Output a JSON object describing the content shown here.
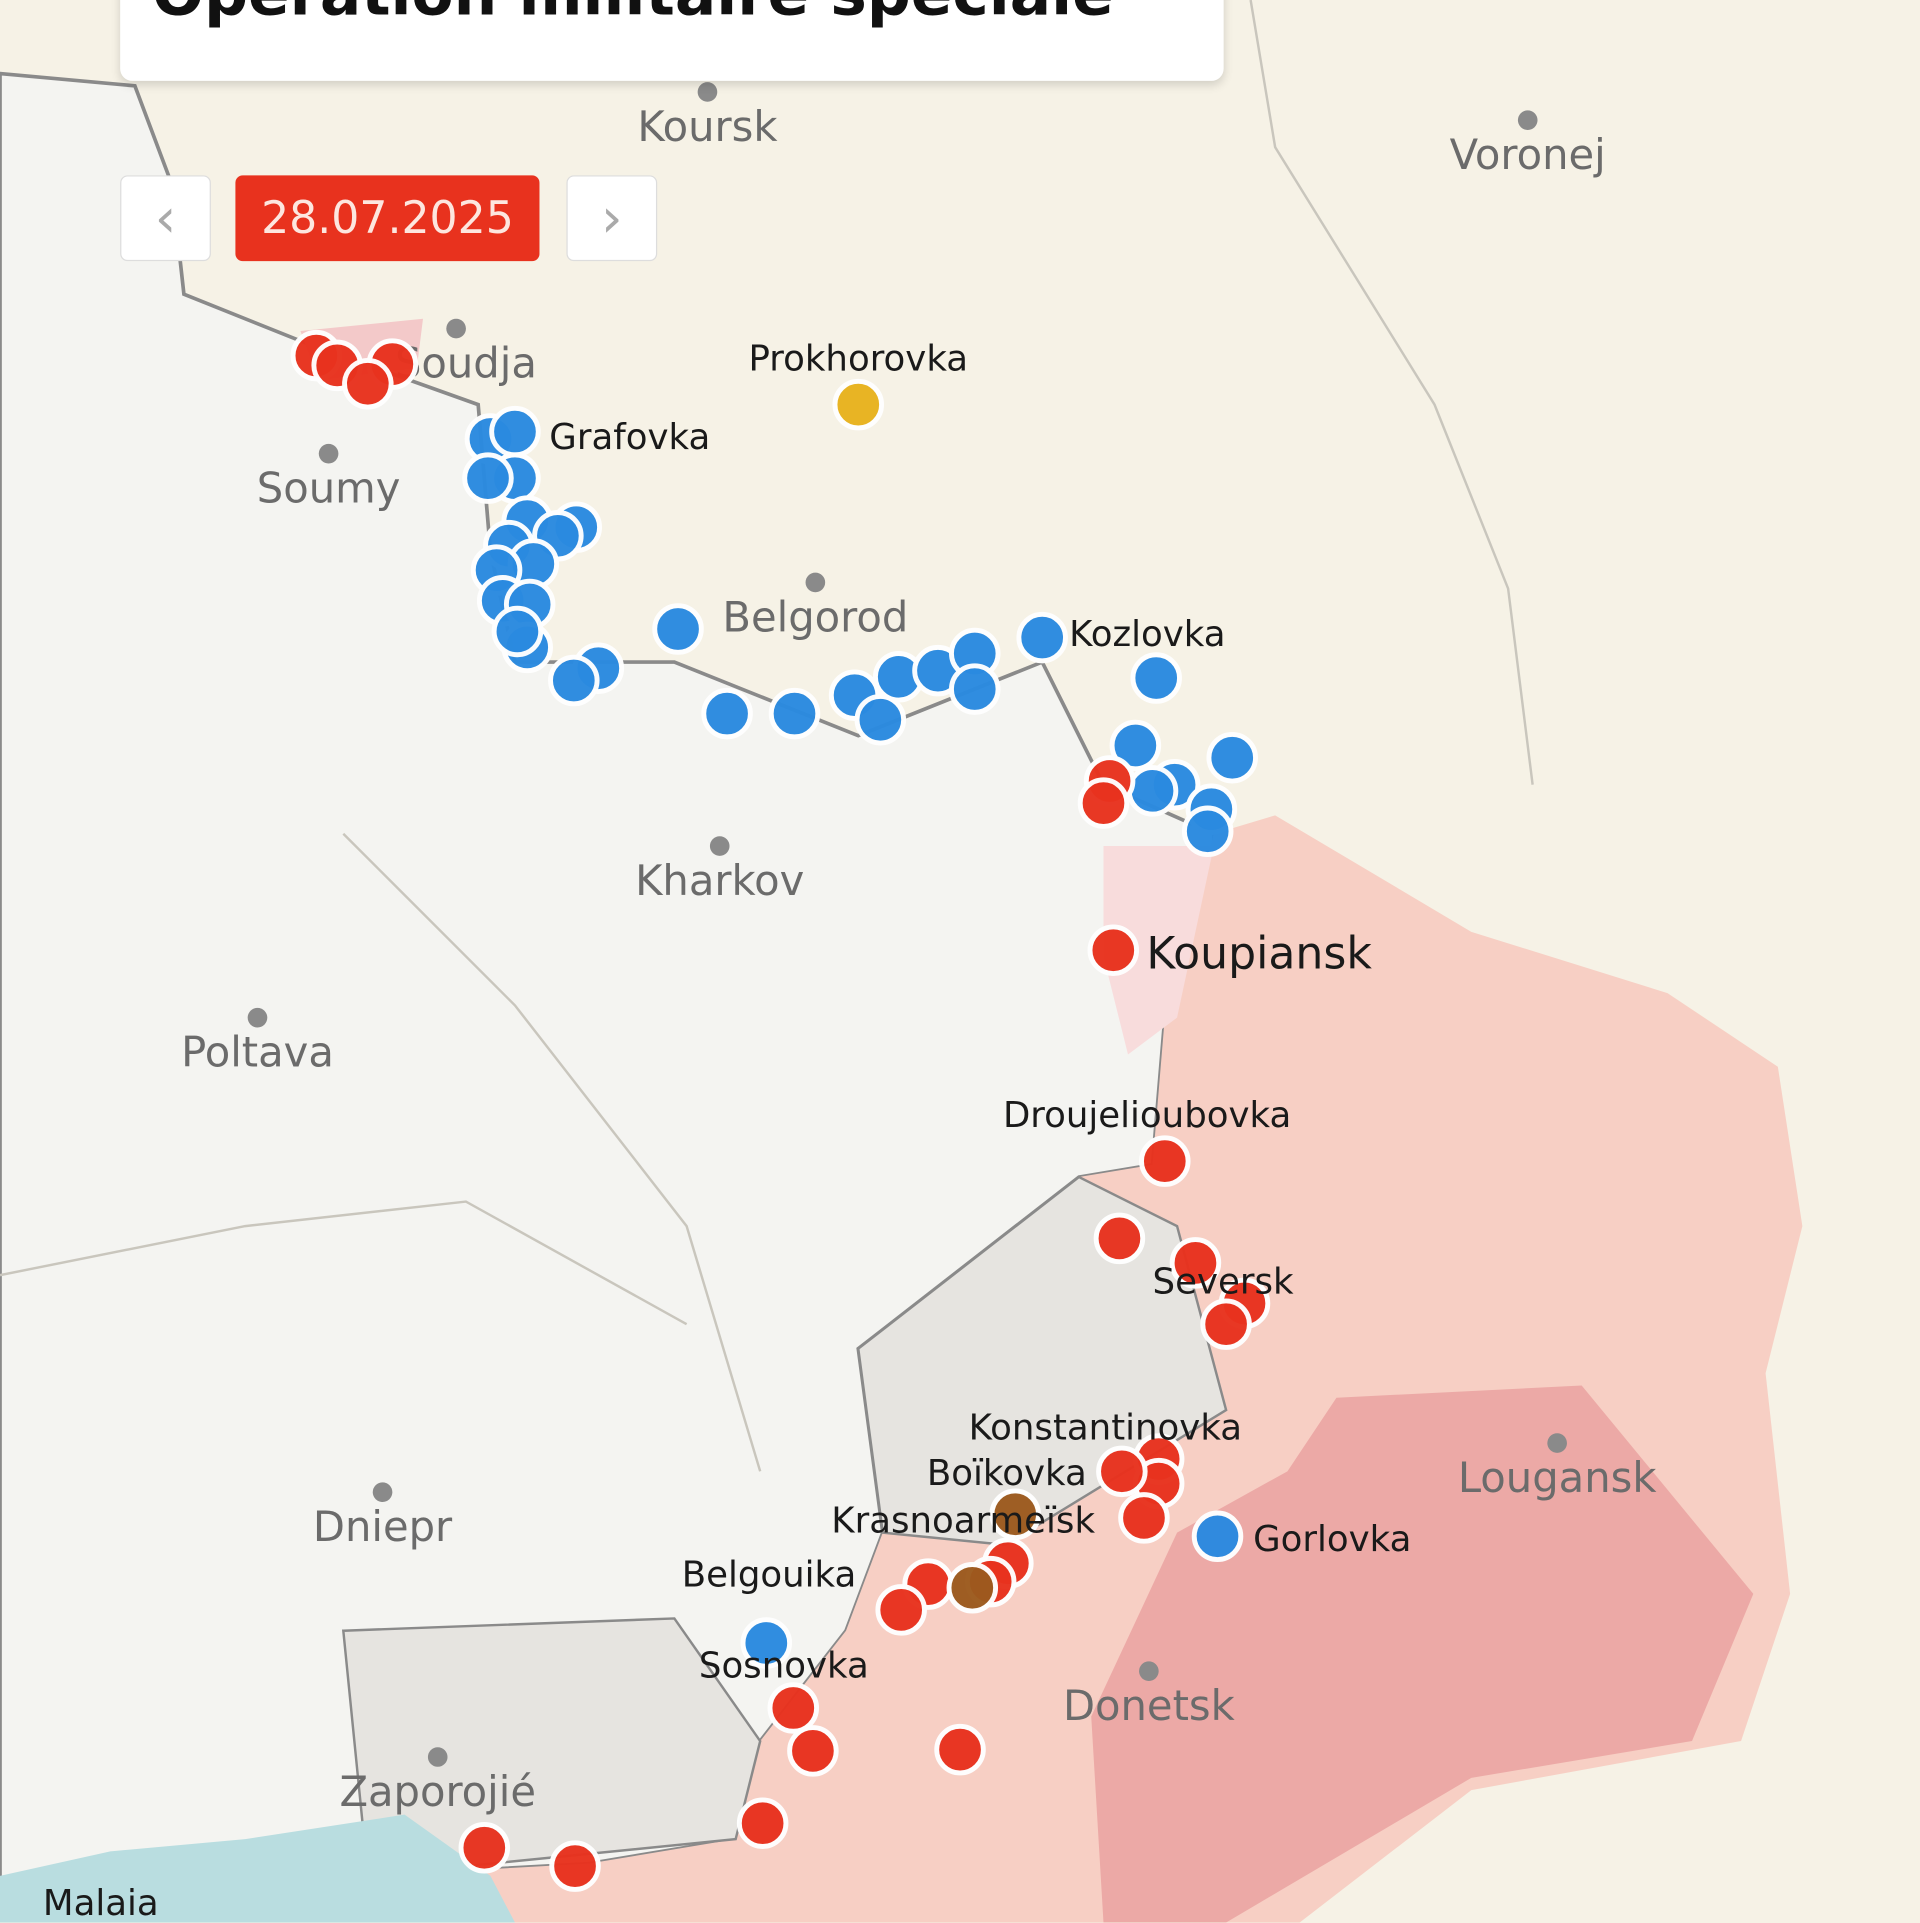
{
  "title": "Opération militaire spéciale",
  "date_control": {
    "date": "28.07.2025",
    "prev_icon": "chevron-left-icon",
    "next_icon": "chevron-right-icon",
    "prev_glyph": "‹",
    "next_glyph": "›"
  },
  "colors": {
    "russian_strike": "#e8321e",
    "ukrainian_strike": "#2a8ae0",
    "brown_marker": "#9c5a1e",
    "yellow_marker": "#e8b21e",
    "occupied_area": "#f7cfc4",
    "republics_area": "#eca9a6",
    "grey_zone": "#e6e4e0",
    "russia_land": "#f6f2e6",
    "ukraine_land": "#f4f4f1"
  },
  "cities": [
    "Koursk",
    "Voronej",
    "Soudja",
    "Soumy",
    "Belgorod",
    "Kharkov",
    "Poltava",
    "Dniepr",
    "Zaporojié",
    "Donetsk",
    "Lougansk"
  ],
  "places": [
    "Prokhorovka",
    "Grafovka",
    "Kozlovka",
    "Koupiansk",
    "Droujelioubovka",
    "Seversk",
    "Konstantinovka",
    "Boïkovka",
    "Krasnoarmeïsk",
    "Belgouika",
    "Gorlovka",
    "Sosnovka",
    "Malaia"
  ]
}
